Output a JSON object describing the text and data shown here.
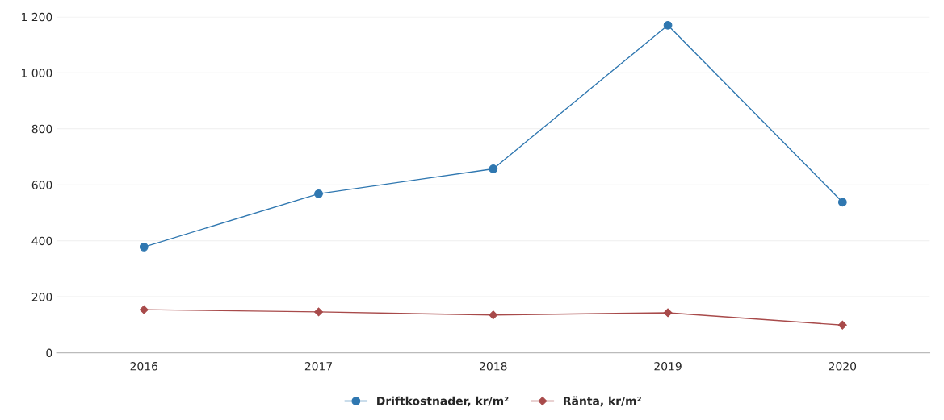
{
  "chart_data": {
    "type": "line",
    "categories": [
      "2016",
      "2017",
      "2018",
      "2019",
      "2020"
    ],
    "series": [
      {
        "name": "Driftkostnader, kr/m²",
        "color": "#2f77b0",
        "marker": "circle",
        "values": [
          378,
          568,
          657,
          1170,
          538
        ]
      },
      {
        "name": "Ränta, kr/m²",
        "color": "#a84a4a",
        "marker": "diamond",
        "values": [
          154,
          146,
          135,
          143,
          99
        ]
      }
    ],
    "ylim": [
      0,
      1200
    ],
    "yticks": [
      0,
      200,
      400,
      600,
      800,
      {
        "value": 1000,
        "label": "1 000"
      },
      {
        "value": 1200,
        "label": "1 200"
      }
    ],
    "grid": "y",
    "legend": "bottom",
    "line_style": "solid"
  }
}
